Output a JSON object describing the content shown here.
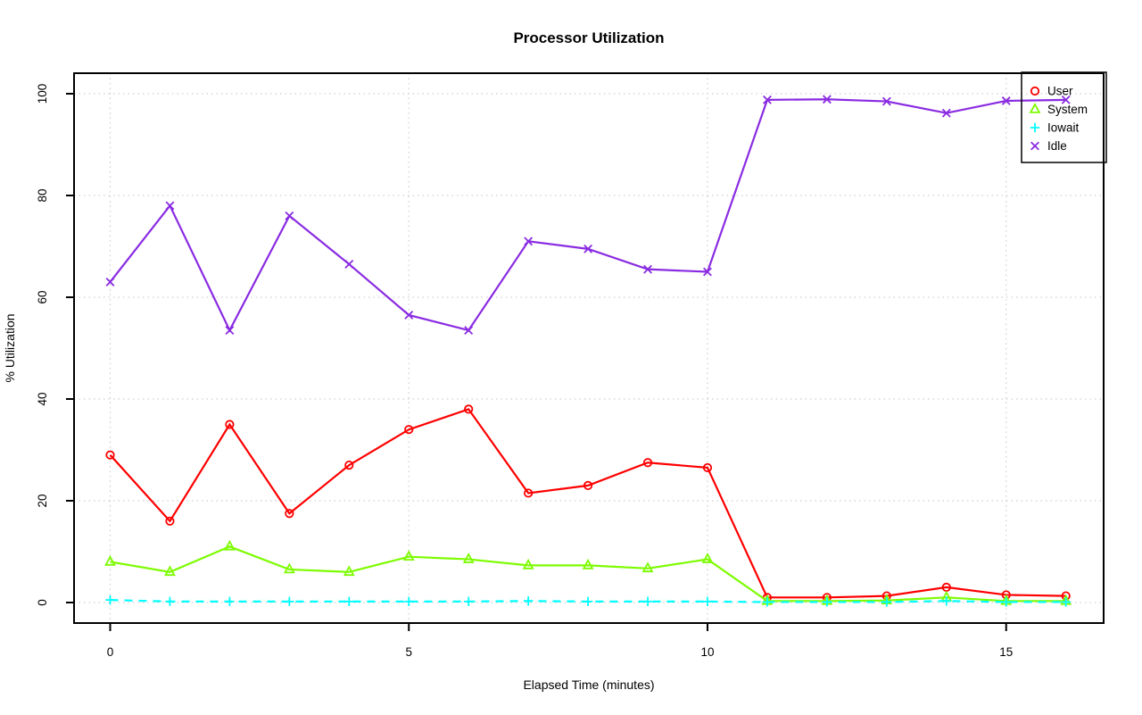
{
  "chart_data": {
    "type": "line",
    "title": "Processor Utilization",
    "xlabel": "Elapsed Time (minutes)",
    "ylabel": "% Utilization",
    "xlim": [
      0,
      16
    ],
    "ylim": [
      0,
      100
    ],
    "x_ticks": [
      0,
      5,
      10,
      15
    ],
    "y_ticks": [
      0,
      20,
      40,
      60,
      80,
      100
    ],
    "grid": true,
    "grid_style": "dotted-lightgray",
    "legend_position": "top-right",
    "background": "#ffffff",
    "x": [
      0,
      1,
      2,
      3,
      4,
      5,
      6,
      7,
      8,
      9,
      10,
      11,
      12,
      13,
      14,
      15,
      16
    ],
    "series": [
      {
        "name": "User",
        "color": "#ff0000",
        "marker": "circle",
        "line": "solid",
        "values": [
          29,
          16,
          35,
          17.5,
          27,
          34,
          38,
          21.5,
          23,
          27.5,
          26.5,
          1,
          1,
          1.3,
          3,
          1.5,
          1.3
        ]
      },
      {
        "name": "System",
        "color": "#7cfc00",
        "marker": "triangle",
        "line": "solid",
        "values": [
          8,
          6,
          11,
          6.5,
          6,
          9,
          8.5,
          7.3,
          7.3,
          6.7,
          8.5,
          0.3,
          0.3,
          0.4,
          1,
          0.3,
          0.3
        ]
      },
      {
        "name": "Iowait",
        "color": "#00ffff",
        "marker": "plus",
        "line": "dashed",
        "values": [
          0.5,
          0.2,
          0.2,
          0.2,
          0.2,
          0.2,
          0.2,
          0.3,
          0.2,
          0.2,
          0.2,
          0.1,
          0.1,
          0.1,
          0.3,
          0.1,
          0.1
        ]
      },
      {
        "name": "Idle",
        "color": "#8a2be2",
        "marker": "x",
        "line": "solid",
        "values": [
          63,
          78,
          53.5,
          76,
          66.5,
          56.5,
          53.5,
          71,
          69.5,
          65.5,
          65,
          98.8,
          98.9,
          98.5,
          96.2,
          98.6,
          98.8
        ]
      }
    ]
  }
}
